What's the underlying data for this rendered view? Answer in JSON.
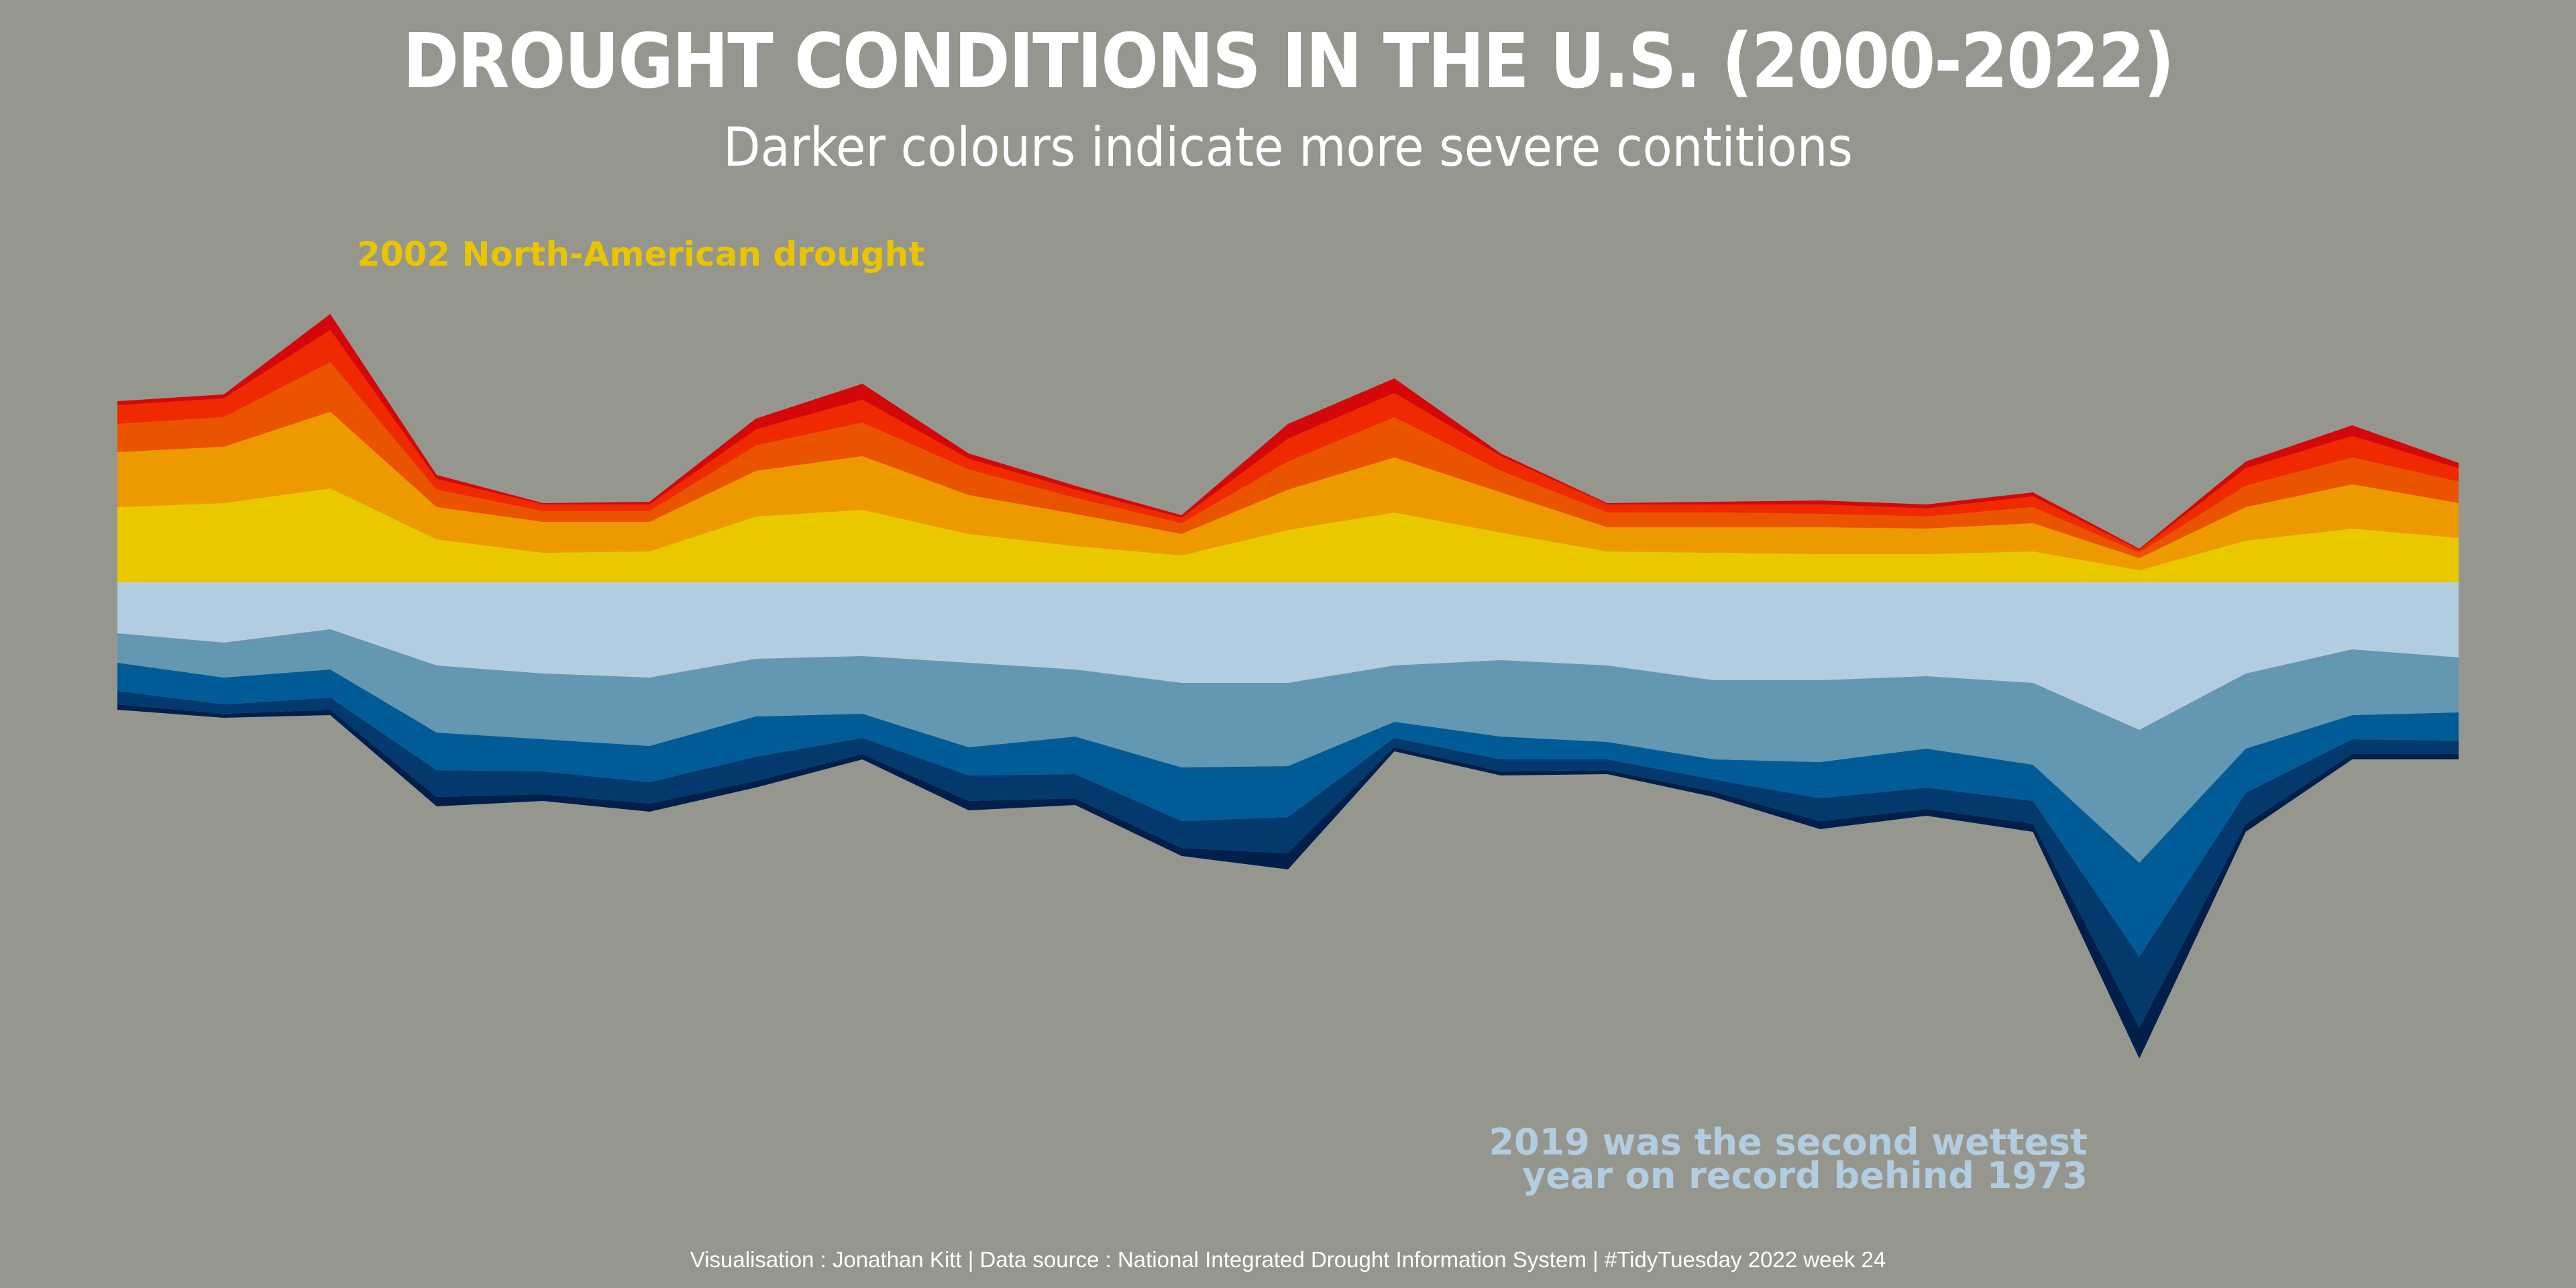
{
  "header": {
    "title": "DROUGHT CONDITIONS IN THE U.S. (2000-2022)",
    "subtitle": "Darker colours indicate more severe contitions"
  },
  "annotations": {
    "drought": "2002 North-American drought",
    "wet_line1": "2019 was the second wettest",
    "wet_line2": "year on record behind 1973"
  },
  "caption": "Visualisation : Jonathan Kitt | Data source : National Integrated Drought Information System | #TidyTuesday 2022 week 24",
  "colors": {
    "background": "#95978f",
    "dry": [
      "#e9c800",
      "#ec9a00",
      "#ea5400",
      "#ef2a00",
      "#d40808"
    ],
    "wet": [
      "#b3cde0",
      "#6497b1",
      "#005b96",
      "#03396c",
      "#011f4b"
    ]
  },
  "chart_data": {
    "type": "area",
    "x": [
      2000,
      2001,
      2002,
      2003,
      2004,
      2005,
      2006,
      2007,
      2008,
      2009,
      2010,
      2011,
      2012,
      2013,
      2014,
      2015,
      2016,
      2017,
      2018,
      2019,
      2020,
      2021,
      2022
    ],
    "grid": false,
    "legend": "none",
    "note": "Diverging stacked area; dry categories stack upward, wet categories stack downward from the 0 baseline. Values in arbitrary index units estimated from the graphic.",
    "dry_series": [
      {
        "key": "D0",
        "values": [
          56,
          59,
          70,
          32,
          22,
          23,
          49,
          54,
          36,
          27,
          20,
          39,
          52,
          37,
          23,
          22,
          21,
          21,
          23,
          9,
          31,
          40,
          33
        ]
      },
      {
        "key": "D1",
        "values": [
          41,
          42,
          57,
          24,
          23,
          22,
          34,
          40,
          29,
          24,
          16,
          30,
          41,
          30,
          18,
          19,
          20,
          19,
          21,
          9,
          25,
          33,
          26
        ]
      },
      {
        "key": "D2",
        "values": [
          21,
          22,
          37,
          13,
          8,
          8,
          19,
          25,
          19,
          12,
          8,
          21,
          30,
          16,
          11,
          11,
          10,
          9,
          12,
          4,
          16,
          20,
          16
        ]
      },
      {
        "key": "D3",
        "values": [
          14,
          14,
          24,
          8,
          5,
          5,
          12,
          17,
          8,
          6,
          4,
          17,
          18,
          11,
          6,
          6,
          7,
          6,
          8,
          2,
          13,
          16,
          10
        ]
      },
      {
        "key": "D4",
        "values": [
          3,
          3,
          12,
          3,
          1,
          2,
          8,
          12,
          4,
          3,
          2,
          11,
          11,
          2,
          1,
          2,
          3,
          3,
          3,
          1,
          5,
          8,
          4
        ]
      }
    ],
    "wet_series": [
      {
        "key": "W0",
        "values": [
          38,
          45,
          35,
          62,
          68,
          71,
          57,
          55,
          60,
          65,
          75,
          75,
          62,
          58,
          62,
          73,
          73,
          70,
          75,
          110,
          68,
          50,
          56
        ]
      },
      {
        "key": "W1",
        "values": [
          22,
          26,
          30,
          50,
          49,
          51,
          43,
          43,
          63,
          50,
          63,
          62,
          42,
          57,
          57,
          59,
          61,
          54,
          61,
          99,
          56,
          49,
          41
        ]
      },
      {
        "key": "W2",
        "values": [
          21,
          20,
          21,
          28,
          24,
          27,
          30,
          18,
          21,
          28,
          40,
          38,
          12,
          17,
          13,
          15,
          27,
          29,
          27,
          70,
          33,
          18,
          21
        ]
      },
      {
        "key": "W3",
        "values": [
          10,
          7,
          9,
          20,
          17,
          16,
          18,
          12,
          19,
          18,
          20,
          27,
          7,
          9,
          8,
          9,
          17,
          16,
          17,
          53,
          23,
          11,
          10
        ]
      },
      {
        "key": "W4",
        "values": [
          4,
          3,
          4,
          7,
          5,
          6,
          5,
          4,
          7,
          5,
          6,
          12,
          3,
          3,
          3,
          4,
          6,
          5,
          6,
          23,
          6,
          4,
          4
        ]
      }
    ]
  }
}
